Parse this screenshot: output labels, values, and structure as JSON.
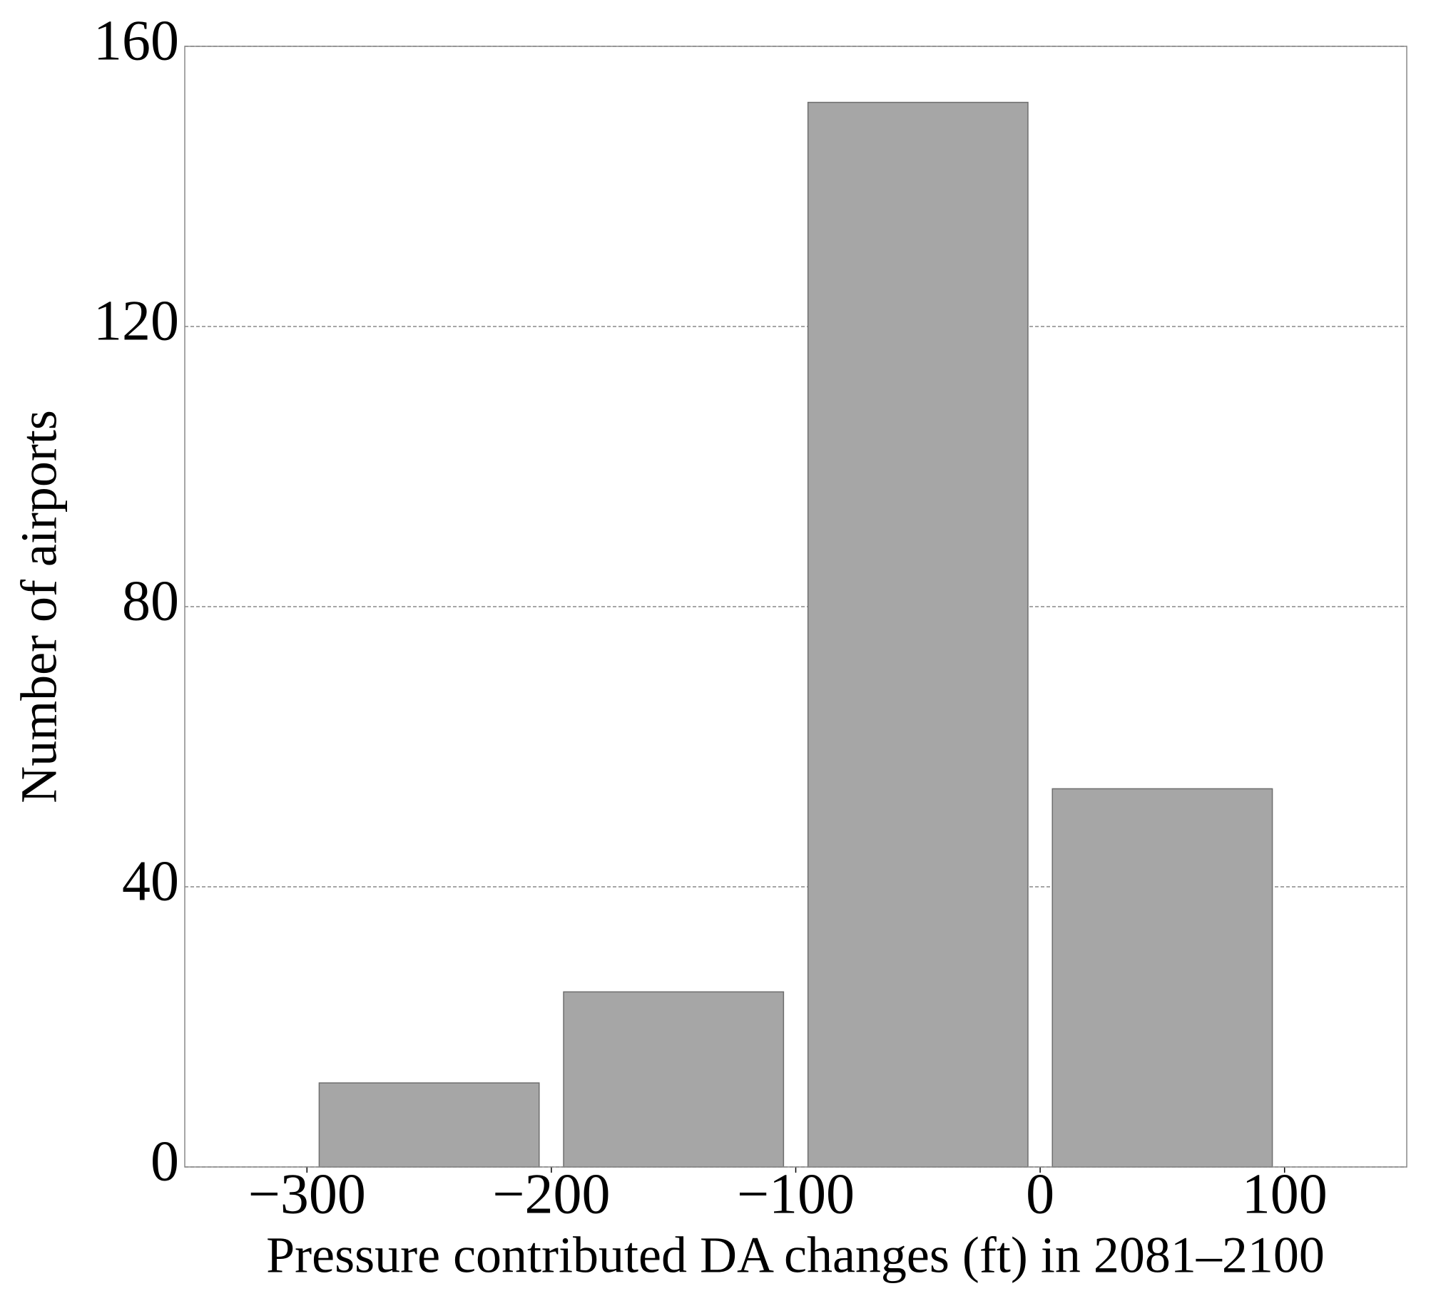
{
  "chart_data": {
    "type": "histogram",
    "x_label": "Pressure contributed DA changes (ft) in 2081–2100",
    "y_label": "Number of airports",
    "bins": [
      -300,
      -200,
      -100,
      0,
      100
    ],
    "values": [
      12,
      25,
      152,
      54
    ],
    "color": "#a6a6a6",
    "edge_color": "#6e6e6e",
    "xlim": [
      -350,
      150
    ],
    "xticks": [
      {
        "value": -300,
        "label": "−300"
      },
      {
        "value": -200,
        "label": "−200"
      },
      {
        "value": -100,
        "label": "−100"
      },
      0,
      100
    ],
    "ylim": [
      0,
      160
    ],
    "yticks": [
      0,
      40,
      80,
      120,
      160
    ],
    "grid": true
  }
}
